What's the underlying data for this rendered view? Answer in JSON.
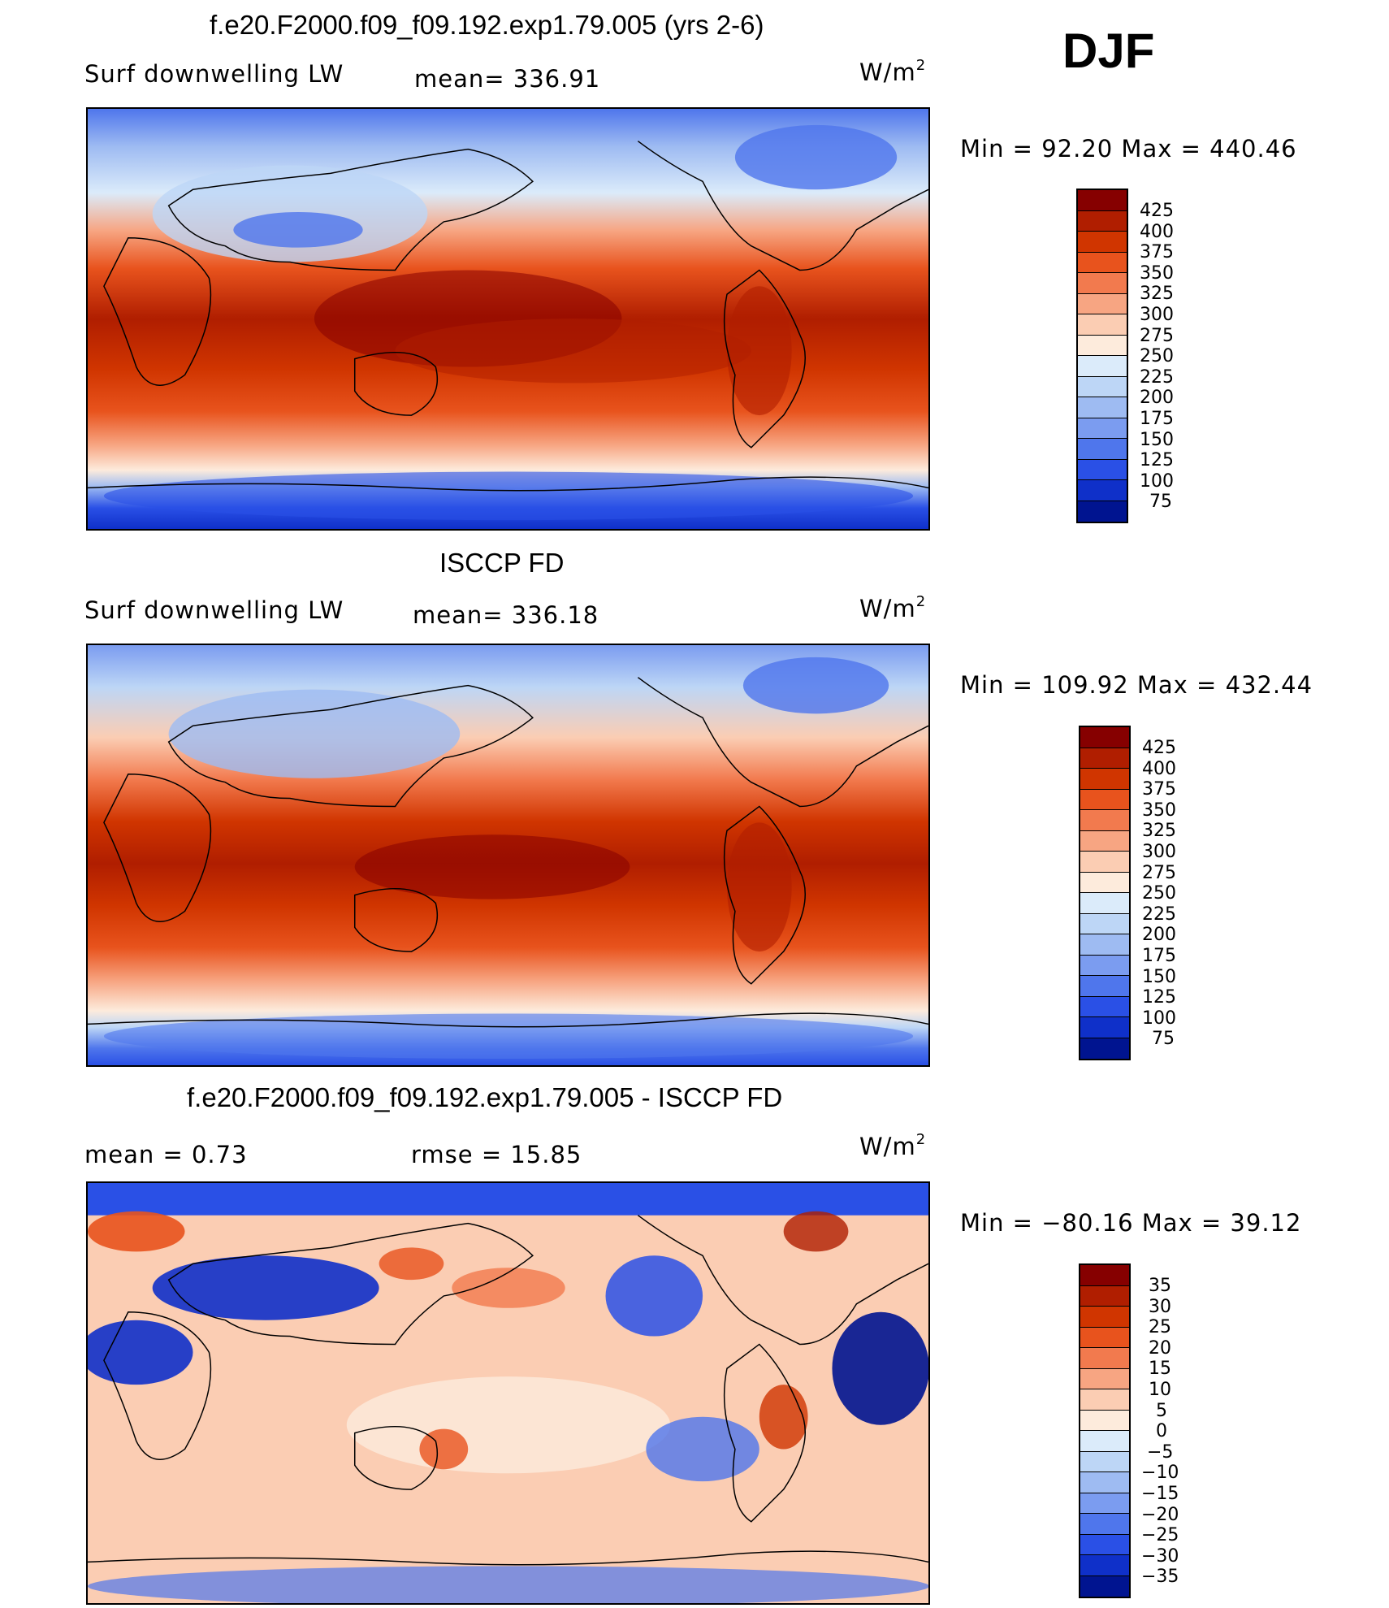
{
  "season": "DJF",
  "panels": [
    {
      "title": "f.e20.F2000.f09_f09.192.exp1.79.005 (yrs 2-6)",
      "left_label": "Surf downwelling LW",
      "center_label": "mean= 336.91",
      "unit_base": "W/m",
      "unit_sup": "2",
      "minmax": "Min =   92.20 Max = 440.46",
      "colorbar_ticks": [
        "425",
        "400",
        "375",
        "350",
        "325",
        "300",
        "275",
        "250",
        "225",
        "200",
        "175",
        "150",
        "125",
        "100",
        "75"
      ]
    },
    {
      "title": "ISCCP FD",
      "left_label": "Surf downwelling LW",
      "center_label": "mean= 336.18",
      "unit_base": "W/m",
      "unit_sup": "2",
      "minmax": "Min = 109.92 Max = 432.44",
      "colorbar_ticks": [
        "425",
        "400",
        "375",
        "350",
        "325",
        "300",
        "275",
        "250",
        "225",
        "200",
        "175",
        "150",
        "125",
        "100",
        "75"
      ]
    },
    {
      "title": "f.e20.F2000.f09_f09.192.exp1.79.005 - ISCCP FD",
      "left_label": "mean =     0.73",
      "center_label": "rmse =    15.85",
      "unit_base": "W/m",
      "unit_sup": "2",
      "minmax": "Min = −80.16 Max =   39.12",
      "colorbar_ticks": [
        "35",
        "30",
        "25",
        "20",
        "15",
        "10",
        "5",
        "0",
        "−5",
        "−10",
        "−15",
        "−20",
        "−25",
        "−30",
        "−35"
      ]
    }
  ],
  "colors": {
    "abs_scale": [
      "#860000",
      "#b01e00",
      "#d03500",
      "#e8531d",
      "#f27a4e",
      "#f7a582",
      "#fbcdb3",
      "#fdebdc",
      "#dbebfa",
      "#bdd6f6",
      "#9ebbf2",
      "#7b9cf0",
      "#4f76ec",
      "#2a50e6",
      "#0f30c9",
      "#001490"
    ],
    "diff_scale": [
      "#860000",
      "#b01e00",
      "#d03500",
      "#e8531d",
      "#f27a4e",
      "#f7a582",
      "#fbcdb3",
      "#fdebdc",
      "#dbebfa",
      "#bdd6f6",
      "#9ebbf2",
      "#7b9cf0",
      "#4f76ec",
      "#2a50e6",
      "#0f30c9",
      "#001490"
    ]
  }
}
